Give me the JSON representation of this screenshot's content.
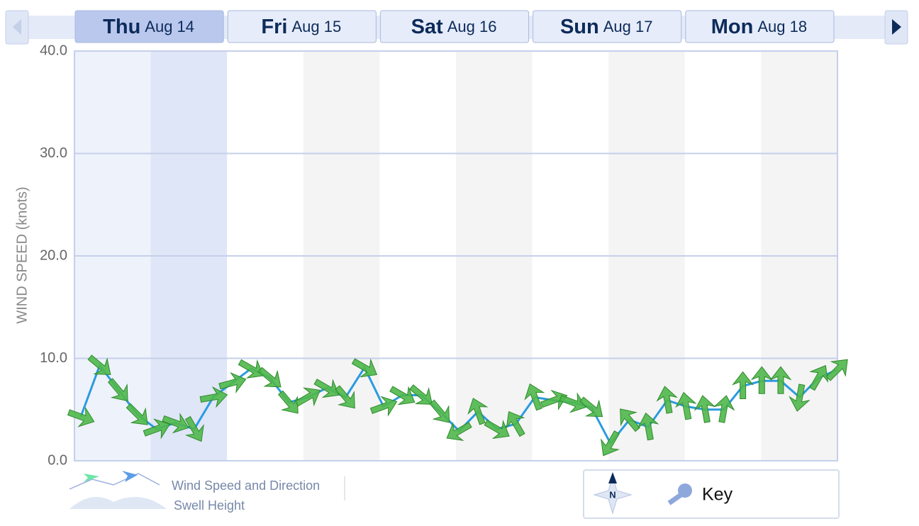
{
  "tabs": [
    {
      "day": "Thu",
      "date": "Aug 14"
    },
    {
      "day": "Fri",
      "date": "Aug 15"
    },
    {
      "day": "Sat",
      "date": "Aug 16"
    },
    {
      "day": "Sun",
      "date": "Aug 17"
    },
    {
      "day": "Mon",
      "date": "Aug 18"
    }
  ],
  "chart_data": {
    "type": "line",
    "y_label": "WIND SPEED (knots)",
    "x": [
      0,
      3,
      6,
      9,
      12,
      15,
      18,
      21,
      24,
      27,
      30,
      33,
      36,
      39,
      42,
      45,
      48,
      51,
      54,
      57,
      60,
      63,
      66,
      69,
      72,
      75,
      78,
      81,
      84,
      87,
      90,
      93,
      96,
      99,
      102,
      105,
      108,
      111,
      114,
      117,
      120
    ],
    "xlim": [
      -1,
      120
    ],
    "ylim": [
      0,
      40
    ],
    "yticks": [
      {
        "value": 0,
        "label": "0.0"
      },
      {
        "value": 10,
        "label": "10.0"
      },
      {
        "value": 20,
        "label": "20.0"
      },
      {
        "value": 30,
        "label": "30.0"
      },
      {
        "value": 40,
        "label": "40.0"
      }
    ],
    "grid": true,
    "series": [
      {
        "name": "Wind Speed and Direction",
        "color": "#2a9be0",
        "arrow_color": "#4fb84a",
        "values": [
          4.3,
          9.3,
          6.9,
          4.5,
          3.1,
          3.7,
          3.1,
          6.2,
          7.6,
          9.0,
          8.1,
          5.7,
          6.2,
          7.1,
          6.2,
          9.1,
          5.3,
          6.4,
          6.4,
          4.8,
          2.9,
          4.8,
          3.1,
          3.6,
          6.2,
          5.9,
          5.7,
          5.2,
          1.7,
          4.0,
          3.3,
          5.9,
          5.3,
          5.0,
          5.0,
          7.3,
          7.8,
          7.8,
          6.2,
          8.1,
          8.9
        ],
        "directions": [
          20,
          40,
          50,
          45,
          -20,
          20,
          60,
          -10,
          -15,
          30,
          40,
          50,
          -30,
          30,
          50,
          30,
          -20,
          30,
          40,
          50,
          150,
          -110,
          30,
          -120,
          -110,
          -20,
          20,
          40,
          120,
          -130,
          -100,
          -100,
          -100,
          -100,
          -80,
          -90,
          -90,
          -90,
          100,
          -60,
          -45
        ]
      }
    ]
  },
  "swell_label": "Swell Height",
  "compass_label": "N",
  "key_label": "Key"
}
